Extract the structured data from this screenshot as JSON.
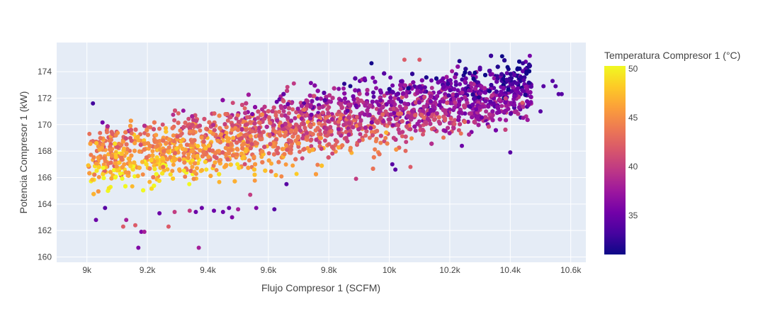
{
  "chart_data": {
    "type": "scatter",
    "title": "",
    "xlabel": "Flujo Compresor 1 (SCFM)",
    "ylabel": "Potencia Compresor 1 (kW)",
    "xlim": [
      8900,
      10650
    ],
    "ylim": [
      159.6,
      176.2
    ],
    "x_ticks": [
      {
        "value": 9000,
        "label": "9k"
      },
      {
        "value": 9200,
        "label": "9.2k"
      },
      {
        "value": 9400,
        "label": "9.4k"
      },
      {
        "value": 9600,
        "label": "9.6k"
      },
      {
        "value": 9800,
        "label": "9.8k"
      },
      {
        "value": 10000,
        "label": "10k"
      },
      {
        "value": 10200,
        "label": "10.2k"
      },
      {
        "value": 10400,
        "label": "10.4k"
      },
      {
        "value": 10600,
        "label": "10.6k"
      }
    ],
    "y_ticks": [
      {
        "value": 160,
        "label": "160"
      },
      {
        "value": 162,
        "label": "162"
      },
      {
        "value": 164,
        "label": "164"
      },
      {
        "value": 166,
        "label": "166"
      },
      {
        "value": 168,
        "label": "168"
      },
      {
        "value": 170,
        "label": "170"
      },
      {
        "value": 172,
        "label": "172"
      },
      {
        "value": 174,
        "label": "174"
      }
    ],
    "grid": true,
    "colorbar": {
      "title": "Temperatura Compresor 1 (°C)",
      "range": [
        31,
        50.3
      ],
      "ticks": [
        {
          "value": 35,
          "label": "35"
        },
        {
          "value": 40,
          "label": "40"
        },
        {
          "value": 45,
          "label": "45"
        },
        {
          "value": 50,
          "label": "50"
        }
      ],
      "colorscale": [
        "#0d0887",
        "#46039f",
        "#7201a8",
        "#9c179e",
        "#bd3786",
        "#d8576b",
        "#ed7953",
        "#fb9f3a",
        "#fdca26",
        "#f0f921"
      ]
    },
    "main_cloud": {
      "description_note": "",
      "x_min": 9000,
      "x_max": 10470,
      "trend": {
        "x0": 9000,
        "y0": 167.2,
        "x1": 10450,
        "y1": 172.6
      },
      "temperature_trend": {
        "x0": 9000,
        "t0": 47.5,
        "x1": 10450,
        "t1": 35
      }
    },
    "outliers": [
      {
        "x": 9020,
        "y": 171.6,
        "t": 33
      },
      {
        "x": 9030,
        "y": 162.8,
        "t": 35
      },
      {
        "x": 9060,
        "y": 163.7,
        "t": 34
      },
      {
        "x": 9120,
        "y": 162.3,
        "t": 42
      },
      {
        "x": 9130,
        "y": 162.8,
        "t": 38
      },
      {
        "x": 9160,
        "y": 162.4,
        "t": 42
      },
      {
        "x": 9170,
        "y": 160.7,
        "t": 36
      },
      {
        "x": 9180,
        "y": 161.9,
        "t": 36
      },
      {
        "x": 9190,
        "y": 161.9,
        "t": 38
      },
      {
        "x": 9240,
        "y": 163.3,
        "t": 35
      },
      {
        "x": 9270,
        "y": 162.3,
        "t": 42
      },
      {
        "x": 9290,
        "y": 163.4,
        "t": 40
      },
      {
        "x": 9340,
        "y": 163.5,
        "t": 40
      },
      {
        "x": 9360,
        "y": 163.4,
        "t": 35
      },
      {
        "x": 9370,
        "y": 160.7,
        "t": 38
      },
      {
        "x": 9380,
        "y": 163.7,
        "t": 35
      },
      {
        "x": 9420,
        "y": 163.5,
        "t": 35
      },
      {
        "x": 9450,
        "y": 163.4,
        "t": 35
      },
      {
        "x": 9470,
        "y": 163.7,
        "t": 35
      },
      {
        "x": 9480,
        "y": 163.0,
        "t": 36
      },
      {
        "x": 9500,
        "y": 163.6,
        "t": 38
      },
      {
        "x": 9540,
        "y": 164.7,
        "t": 40
      },
      {
        "x": 9560,
        "y": 163.7,
        "t": 36
      },
      {
        "x": 9620,
        "y": 163.6,
        "t": 34
      },
      {
        "x": 9660,
        "y": 165.5,
        "t": 34
      },
      {
        "x": 9890,
        "y": 165.9,
        "t": 40
      },
      {
        "x": 10020,
        "y": 166.6,
        "t": 34
      },
      {
        "x": 10010,
        "y": 167.0,
        "t": 34
      },
      {
        "x": 10070,
        "y": 166.8,
        "t": 42
      },
      {
        "x": 10240,
        "y": 168.4,
        "t": 35
      },
      {
        "x": 10400,
        "y": 167.9,
        "t": 34
      },
      {
        "x": 10500,
        "y": 171.0,
        "t": 34
      },
      {
        "x": 10510,
        "y": 172.9,
        "t": 34
      },
      {
        "x": 10550,
        "y": 172.9,
        "t": 34
      },
      {
        "x": 10560,
        "y": 172.3,
        "t": 34
      },
      {
        "x": 10570,
        "y": 172.3,
        "t": 34
      },
      {
        "x": 10540,
        "y": 173.3,
        "t": 34
      },
      {
        "x": 10050,
        "y": 174.9,
        "t": 42
      },
      {
        "x": 10100,
        "y": 174.9,
        "t": 42
      },
      {
        "x": 10300,
        "y": 174.3,
        "t": 34
      }
    ]
  }
}
